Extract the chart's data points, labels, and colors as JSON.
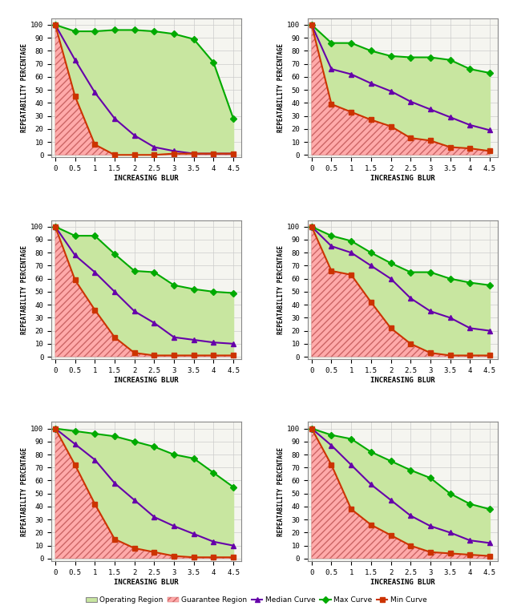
{
  "x": [
    0,
    0.5,
    1,
    1.5,
    2,
    2.5,
    3,
    3.5,
    4,
    4.5
  ],
  "subplots": [
    {
      "max": [
        100,
        95,
        95,
        96,
        96,
        95,
        93,
        89,
        71,
        28
      ],
      "median": [
        100,
        73,
        48,
        28,
        15,
        6,
        3,
        1,
        1,
        1
      ],
      "min": [
        100,
        45,
        8,
        0,
        0,
        0,
        1,
        1,
        1,
        1
      ]
    },
    {
      "max": [
        100,
        86,
        86,
        80,
        76,
        75,
        75,
        73,
        66,
        63
      ],
      "median": [
        100,
        66,
        62,
        55,
        49,
        41,
        35,
        29,
        23,
        19
      ],
      "min": [
        100,
        39,
        33,
        27,
        22,
        13,
        11,
        6,
        5,
        3
      ]
    },
    {
      "max": [
        100,
        93,
        93,
        79,
        66,
        65,
        55,
        52,
        50,
        49
      ],
      "median": [
        100,
        78,
        65,
        50,
        35,
        26,
        15,
        13,
        11,
        10
      ],
      "min": [
        100,
        59,
        36,
        15,
        3,
        1,
        1,
        1,
        1,
        1
      ]
    },
    {
      "max": [
        100,
        93,
        89,
        80,
        72,
        65,
        65,
        60,
        57,
        55
      ],
      "median": [
        100,
        85,
        80,
        70,
        60,
        45,
        35,
        30,
        22,
        20
      ],
      "min": [
        100,
        66,
        63,
        42,
        22,
        10,
        3,
        1,
        1,
        1
      ]
    },
    {
      "max": [
        100,
        98,
        96,
        94,
        90,
        86,
        80,
        77,
        66,
        55
      ],
      "median": [
        100,
        88,
        76,
        58,
        45,
        32,
        25,
        19,
        13,
        10
      ],
      "min": [
        100,
        72,
        42,
        15,
        8,
        5,
        2,
        1,
        1,
        1
      ]
    },
    {
      "max": [
        100,
        95,
        92,
        82,
        75,
        68,
        62,
        50,
        42,
        38
      ],
      "median": [
        100,
        87,
        72,
        57,
        45,
        33,
        25,
        20,
        14,
        12
      ],
      "min": [
        100,
        72,
        38,
        26,
        18,
        10,
        5,
        4,
        3,
        2
      ]
    }
  ],
  "x_label": "INCREASING BLUR",
  "y_label": "REPEATABILITY PERCENTAGE",
  "x_ticks": [
    0,
    0.5,
    1,
    1.5,
    2,
    2.5,
    3,
    3.5,
    4,
    4.5
  ],
  "y_ticks": [
    0,
    10,
    20,
    30,
    40,
    50,
    60,
    70,
    80,
    90,
    100
  ],
  "max_color": "#00aa00",
  "median_color": "#6600aa",
  "min_color": "#cc3300",
  "operating_color": "#c8e6a0",
  "guarantee_color": "#ffaaaa",
  "hatch_pattern": "////",
  "background_color": "#f5f5f0",
  "grid_color": "#cccccc"
}
